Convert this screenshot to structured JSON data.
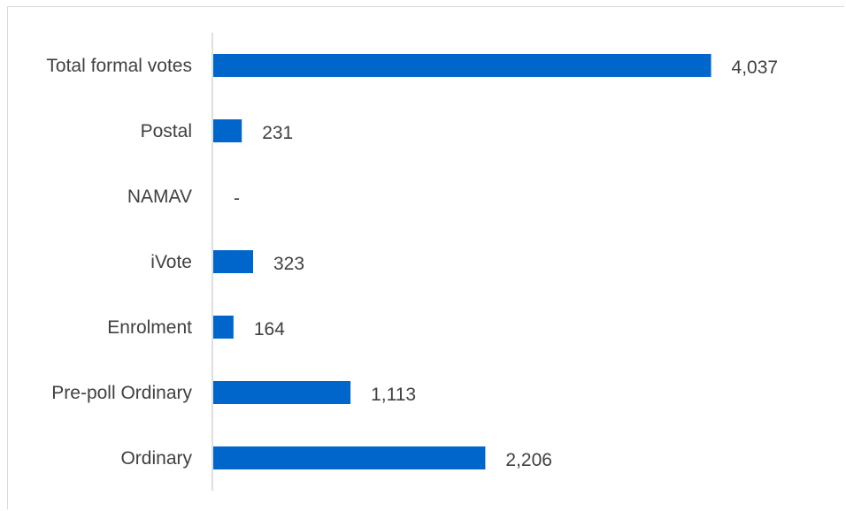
{
  "chart_data": {
    "type": "bar",
    "orientation": "horizontal",
    "categories": [
      "Total formal votes",
      "Postal",
      "NAMAV",
      "iVote",
      "Enrolment",
      "Pre-poll Ordinary",
      "Ordinary"
    ],
    "values": [
      4037,
      231,
      0,
      323,
      164,
      1113,
      2206
    ],
    "value_labels": [
      "4,037",
      "231",
      "-",
      "323",
      "164",
      "1,113",
      "2,206"
    ],
    "title": "",
    "xlabel": "",
    "ylabel": "",
    "xlim": [
      0,
      4600
    ],
    "grid": false,
    "legend": "none",
    "bar_color": "#0066cc",
    "axis_color": "#bfbfbf"
  }
}
